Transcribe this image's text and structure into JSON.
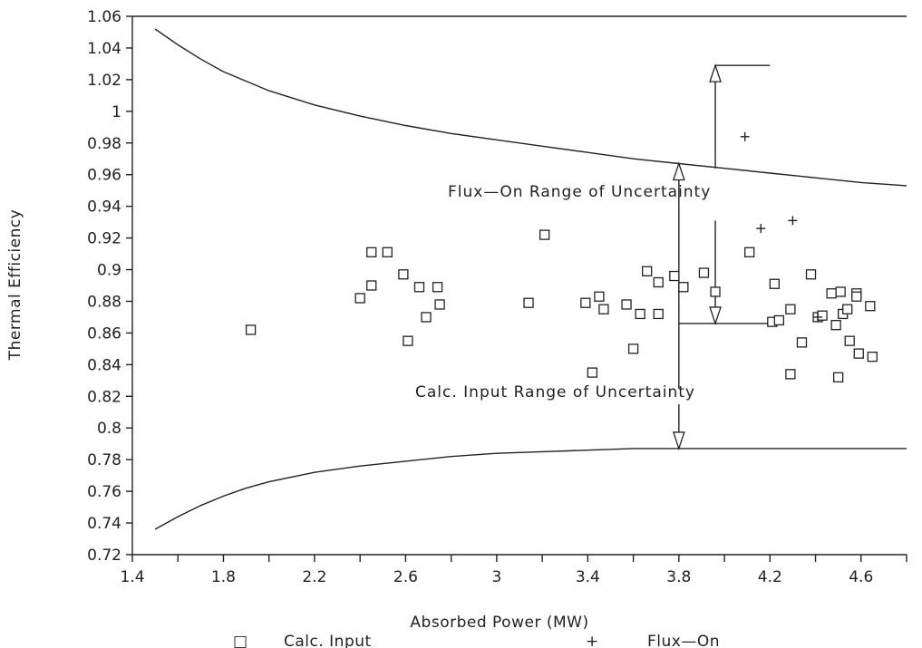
{
  "chart_data": {
    "type": "scatter",
    "xlabel": "Absorbed Power (MW)",
    "ylabel": "Thermal Efficiency",
    "xlim": [
      1.4,
      4.8
    ],
    "ylim": [
      0.72,
      1.06
    ],
    "xticks": [
      1.4,
      1.8,
      2.2,
      2.6,
      3,
      3.4,
      3.8,
      4.2,
      4.6
    ],
    "xtick_labels": [
      "1.4",
      "1.8",
      "2.2",
      "2.6",
      "3",
      "3.4",
      "3.8",
      "4.2",
      "4.6"
    ],
    "xminor_step": 0.2,
    "yticks": [
      0.72,
      0.74,
      0.76,
      0.78,
      0.8,
      0.82,
      0.84,
      0.86,
      0.88,
      0.9,
      0.92,
      0.94,
      0.96,
      0.98,
      1.0,
      1.02,
      1.04,
      1.06
    ],
    "ytick_labels": [
      "0.72",
      "0.74",
      "0.76",
      "0.78",
      "0.8",
      "0.82",
      "0.84",
      "0.86",
      "0.88",
      "0.9",
      "0.92",
      "0.94",
      "0.96",
      "0.98",
      "1",
      "1.02",
      "1.04",
      "1.06"
    ],
    "grid": false,
    "legend_position": "bottom",
    "series": [
      {
        "name": "Calc. Input",
        "marker": "square",
        "points": [
          [
            1.92,
            0.862
          ],
          [
            2.4,
            0.882
          ],
          [
            2.45,
            0.89
          ],
          [
            2.45,
            0.911
          ],
          [
            2.52,
            0.911
          ],
          [
            2.59,
            0.897
          ],
          [
            2.61,
            0.855
          ],
          [
            2.66,
            0.889
          ],
          [
            2.69,
            0.87
          ],
          [
            2.74,
            0.889
          ],
          [
            2.75,
            0.878
          ],
          [
            3.14,
            0.879
          ],
          [
            3.21,
            0.922
          ],
          [
            3.39,
            0.879
          ],
          [
            3.42,
            0.835
          ],
          [
            3.45,
            0.883
          ],
          [
            3.47,
            0.875
          ],
          [
            3.57,
            0.878
          ],
          [
            3.6,
            0.85
          ],
          [
            3.63,
            0.872
          ],
          [
            3.66,
            0.899
          ],
          [
            3.71,
            0.892
          ],
          [
            3.71,
            0.872
          ],
          [
            3.78,
            0.896
          ],
          [
            3.82,
            0.889
          ],
          [
            3.91,
            0.898
          ],
          [
            3.96,
            0.886
          ],
          [
            4.11,
            0.911
          ],
          [
            4.21,
            0.867
          ],
          [
            4.22,
            0.891
          ],
          [
            4.24,
            0.868
          ],
          [
            4.29,
            0.875
          ],
          [
            4.29,
            0.834
          ],
          [
            4.34,
            0.854
          ],
          [
            4.38,
            0.897
          ],
          [
            4.41,
            0.87
          ],
          [
            4.43,
            0.871
          ],
          [
            4.47,
            0.885
          ],
          [
            4.49,
            0.865
          ],
          [
            4.5,
            0.832
          ],
          [
            4.51,
            0.886
          ],
          [
            4.52,
            0.872
          ],
          [
            4.54,
            0.875
          ],
          [
            4.55,
            0.855
          ],
          [
            4.58,
            0.885
          ],
          [
            4.58,
            0.883
          ],
          [
            4.59,
            0.847
          ],
          [
            4.64,
            0.877
          ],
          [
            4.65,
            0.845
          ]
        ]
      },
      {
        "name": "Flux-On",
        "marker": "plus",
        "points": [
          [
            4.09,
            0.984
          ],
          [
            4.16,
            0.926
          ],
          [
            4.3,
            0.931
          ],
          [
            4.41,
            0.87
          ]
        ]
      }
    ],
    "upper_curve": [
      [
        1.5,
        1.052
      ],
      [
        1.6,
        1.042
      ],
      [
        1.7,
        1.033
      ],
      [
        1.8,
        1.025
      ],
      [
        1.9,
        1.019
      ],
      [
        2.0,
        1.013
      ],
      [
        2.2,
        1.004
      ],
      [
        2.4,
        0.997
      ],
      [
        2.6,
        0.991
      ],
      [
        2.8,
        0.986
      ],
      [
        3.0,
        0.982
      ],
      [
        3.2,
        0.978
      ],
      [
        3.4,
        0.974
      ],
      [
        3.6,
        0.97
      ],
      [
        3.8,
        0.967
      ],
      [
        4.0,
        0.964
      ],
      [
        4.2,
        0.961
      ],
      [
        4.4,
        0.958
      ],
      [
        4.6,
        0.955
      ],
      [
        4.8,
        0.953
      ]
    ],
    "lower_curve": [
      [
        1.5,
        0.736
      ],
      [
        1.6,
        0.744
      ],
      [
        1.7,
        0.751
      ],
      [
        1.8,
        0.757
      ],
      [
        1.9,
        0.762
      ],
      [
        2.0,
        0.766
      ],
      [
        2.2,
        0.772
      ],
      [
        2.4,
        0.776
      ],
      [
        2.6,
        0.779
      ],
      [
        2.8,
        0.782
      ],
      [
        3.0,
        0.784
      ],
      [
        3.2,
        0.785
      ],
      [
        3.4,
        0.786
      ],
      [
        3.6,
        0.787
      ],
      [
        3.8,
        0.787
      ],
      [
        4.0,
        0.787
      ],
      [
        4.2,
        0.787
      ],
      [
        4.4,
        0.787
      ],
      [
        4.6,
        0.787
      ],
      [
        4.8,
        0.787
      ]
    ],
    "annotations": {
      "flux_on_label": "Flux—On Range of Uncertainty",
      "calc_input_label": "Calc. Input Range of Uncertainty",
      "flux_on_range": {
        "x": 3.96,
        "y_top": 1.029,
        "y_bottom": 0.866,
        "y_curve": 0.964
      },
      "calc_input_range": {
        "x": 3.8,
        "y_top": 0.967,
        "y_bottom": 0.787
      }
    },
    "legend": [
      {
        "symbol": "□",
        "label": "Calc. Input"
      },
      {
        "symbol": "+",
        "label": "Flux—On"
      }
    ]
  }
}
